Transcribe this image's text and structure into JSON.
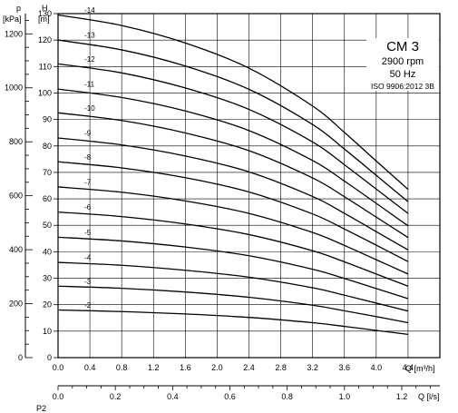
{
  "chart_data": {
    "type": "line",
    "info": {
      "model": "CM 3",
      "speed": "2900 rpm",
      "frequency": "50 Hz",
      "standard": "ISO 9906:2012 3B"
    },
    "axes": {
      "y_head": {
        "label": "H",
        "unit": "[m]",
        "range": [
          0,
          130
        ],
        "ticks": [
          "0",
          "10",
          "20",
          "30",
          "40",
          "50",
          "60",
          "70",
          "80",
          "90",
          "100",
          "110",
          "120",
          "130"
        ]
      },
      "y_pressure": {
        "label": "p",
        "unit": "[kPa]",
        "range": [
          0,
          1275
        ],
        "ticks": [
          "0",
          "200",
          "400",
          "600",
          "800",
          "1000",
          "1200"
        ]
      },
      "x_flow_m3h": {
        "label": "Q [m³/h]",
        "range": [
          0,
          4.8
        ],
        "ticks": [
          "0.0",
          "0.4",
          "0.8",
          "1.2",
          "1.6",
          "2.0",
          "2.4",
          "2.8",
          "3.2",
          "3.6",
          "4.0",
          "4.4"
        ]
      },
      "x_flow_ls": {
        "label": "Q [l/s]",
        "range": [
          0,
          1.333
        ],
        "ticks": [
          "0.0",
          "0.2",
          "0.4",
          "0.6",
          "0.8",
          "1.0",
          "1.2"
        ]
      },
      "next_panel_label": "P2"
    },
    "grid": true,
    "series": [
      {
        "name": "-2",
        "x": [
          0.0,
          0.8,
          1.6,
          2.4,
          3.2,
          3.6,
          4.0,
          4.4
        ],
        "y": [
          18.0,
          17.4,
          16.5,
          15.2,
          13.2,
          11.8,
          10.3,
          8.8
        ]
      },
      {
        "name": "-3",
        "x": [
          0.0,
          0.8,
          1.6,
          2.4,
          3.2,
          3.6,
          4.0,
          4.4
        ],
        "y": [
          27.0,
          26.2,
          24.8,
          22.8,
          19.8,
          17.7,
          15.5,
          13.2
        ]
      },
      {
        "name": "-4",
        "x": [
          0.0,
          0.8,
          1.6,
          2.4,
          3.2,
          3.6,
          4.0,
          4.4
        ],
        "y": [
          36.0,
          34.9,
          33.0,
          30.4,
          26.4,
          23.6,
          20.6,
          17.6
        ]
      },
      {
        "name": "-5",
        "x": [
          0.0,
          0.8,
          1.6,
          2.4,
          3.2,
          3.6,
          4.0,
          4.4
        ],
        "y": [
          45.5,
          44.1,
          41.8,
          38.5,
          33.4,
          29.9,
          26.1,
          22.3
        ]
      },
      {
        "name": "-6",
        "x": [
          0.0,
          0.8,
          1.6,
          2.4,
          3.2,
          3.6,
          4.0,
          4.4
        ],
        "y": [
          55.0,
          53.3,
          50.5,
          46.5,
          40.4,
          36.2,
          31.6,
          27.0
        ]
      },
      {
        "name": "-7",
        "x": [
          0.0,
          0.8,
          1.6,
          2.4,
          3.2,
          3.6,
          4.0,
          4.4
        ],
        "y": [
          64.5,
          62.5,
          59.2,
          54.5,
          47.3,
          42.4,
          37.0,
          31.6
        ]
      },
      {
        "name": "-8",
        "x": [
          0.0,
          0.8,
          1.6,
          2.4,
          3.2,
          3.6,
          4.0,
          4.4
        ],
        "y": [
          74.0,
          71.7,
          68.0,
          62.6,
          54.3,
          48.6,
          42.5,
          36.3
        ]
      },
      {
        "name": "-9",
        "x": [
          0.0,
          0.8,
          1.6,
          2.4,
          3.2,
          3.6,
          4.0,
          4.4
        ],
        "y": [
          83.0,
          80.4,
          76.2,
          70.2,
          60.9,
          54.5,
          47.6,
          40.7
        ]
      },
      {
        "name": "-10",
        "x": [
          0.0,
          0.8,
          1.6,
          2.4,
          3.2,
          3.6,
          4.0,
          4.4
        ],
        "y": [
          92.5,
          89.6,
          84.9,
          78.2,
          67.9,
          60.8,
          53.1,
          45.4
        ]
      },
      {
        "name": "-11",
        "x": [
          0.0,
          0.8,
          1.6,
          2.4,
          3.2,
          3.6,
          4.0,
          4.4
        ],
        "y": [
          101.5,
          98.3,
          93.2,
          85.8,
          74.5,
          66.7,
          58.3,
          49.8
        ]
      },
      {
        "name": "-12",
        "x": [
          0.0,
          0.8,
          1.6,
          2.4,
          3.2,
          3.6,
          4.0,
          4.4
        ],
        "y": [
          111.0,
          107.6,
          101.9,
          93.8,
          81.5,
          72.9,
          63.7,
          54.5
        ]
      },
      {
        "name": "-13",
        "x": [
          0.0,
          0.8,
          1.6,
          2.4,
          3.2,
          3.6,
          4.0,
          4.4
        ],
        "y": [
          120.0,
          116.3,
          110.2,
          101.4,
          88.1,
          78.8,
          68.9,
          58.9
        ]
      },
      {
        "name": "-14",
        "x": [
          0.0,
          0.8,
          1.6,
          2.4,
          3.2,
          3.6,
          4.0,
          4.4
        ],
        "y": [
          129.5,
          125.5,
          118.9,
          109.4,
          95.1,
          85.1,
          74.3,
          63.6
        ]
      }
    ]
  }
}
